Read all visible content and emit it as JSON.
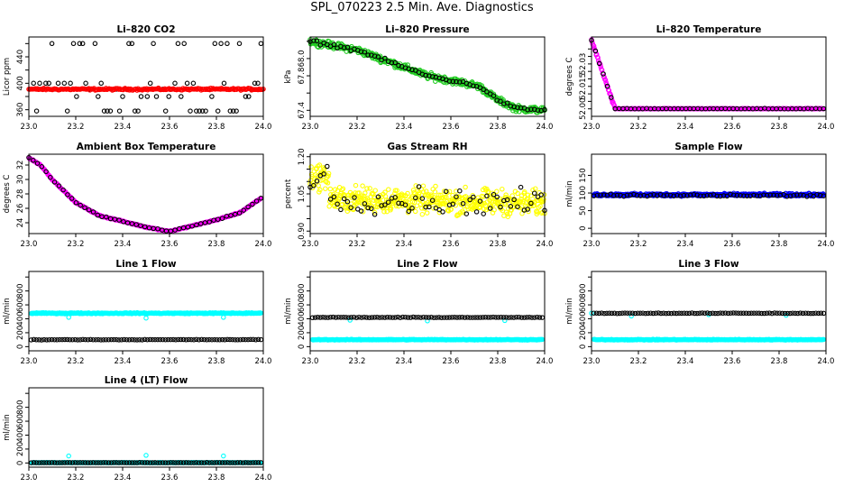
{
  "figure": {
    "title": "SPL_070223  2.5 Min. Ave. Diagnostics"
  },
  "colors": {
    "outline": "#000000",
    "red": "#ff0000",
    "green": "#22cc22",
    "magenta": "#ff00ff",
    "yellow": "#ffff00",
    "blue": "#0000ff",
    "cyan": "#00ffff",
    "black": "#000000"
  },
  "chart_data": [
    {
      "id": "co2",
      "type": "scatter",
      "title": "Li–820 CO2",
      "ylabel": "Licor ppm",
      "xlim": [
        23.0,
        24.0
      ],
      "ylim": [
        350,
        470
      ],
      "xticks": [
        "23.0",
        "23.2",
        "23.4",
        "23.6",
        "23.8",
        "24.0"
      ],
      "yticks": [
        {
          "v": 360,
          "label": "360"
        },
        {
          "v": 400,
          "label": "400"
        },
        {
          "v": 440,
          "label": "440"
        }
      ],
      "ytick_marks": [
        360,
        380,
        400,
        420,
        440,
        460
      ],
      "series": [
        {
          "name": "Li-820 CO2 (black)",
          "color": "black",
          "gen": "co2_spiky"
        },
        {
          "name": "Li-820 CO2 (red)",
          "color": "red",
          "gen": "co2_red"
        }
      ]
    },
    {
      "id": "pressure",
      "type": "scatter",
      "title": "Li–820 Pressure",
      "ylabel": "kPa",
      "xlim": [
        23.0,
        24.0
      ],
      "ylim": [
        67.33,
        68.25
      ],
      "xticks": [
        "23.0",
        "23.2",
        "23.4",
        "23.6",
        "23.8",
        "24.0"
      ],
      "yticks": [
        {
          "v": 67.4,
          "label": "67.4"
        },
        {
          "v": 67.8,
          "label": "67.8"
        },
        {
          "v": 68.0,
          "label": "68.0"
        }
      ],
      "ytick_marks": [
        67.4,
        67.6,
        67.8,
        68.0,
        68.2
      ],
      "series": [
        {
          "name": "Li-820 Pressure (green)",
          "color": "green",
          "gen": "pressure",
          "n": 460,
          "jitter": 0.04
        },
        {
          "name": "Li-820 Pressure (black)",
          "color": "black",
          "gen": "pressure",
          "n": 70,
          "jitter": 0.02
        }
      ]
    },
    {
      "id": "licor_temp",
      "type": "scatter",
      "title": "Li–820 Temperature",
      "ylabel": "degrees C",
      "xlim": [
        23.0,
        24.0
      ],
      "ylim": [
        51.995,
        52.048
      ],
      "xticks": [
        "23.0",
        "23.2",
        "23.4",
        "23.6",
        "23.8",
        "24.0"
      ],
      "yticks": [
        {
          "v": 52.0,
          "label": "52.00"
        },
        {
          "v": 52.015,
          "label": "52.015"
        },
        {
          "v": 52.03,
          "label": "52.03"
        }
      ],
      "ytick_marks": [
        52.0,
        52.005,
        52.01,
        52.015,
        52.02,
        52.025,
        52.03,
        52.035,
        52.04
      ],
      "series": [
        {
          "name": "Li-820 Temperature (magenta)",
          "color": "magenta",
          "gen": "licor_temp",
          "n": 400
        },
        {
          "name": "Li-820 Temperature (black)",
          "color": "black",
          "gen": "licor_temp",
          "n": 60
        }
      ]
    },
    {
      "id": "box_temp",
      "type": "scatter",
      "title": "Ambient Box Temperature",
      "ylabel": "degrees C",
      "xlim": [
        23.0,
        24.0
      ],
      "ylim": [
        22.5,
        33.5
      ],
      "xticks": [
        "23.0",
        "23.2",
        "23.4",
        "23.6",
        "23.8",
        "24.0"
      ],
      "yticks": [
        {
          "v": 24,
          "label": "24"
        },
        {
          "v": 26,
          "label": "26"
        },
        {
          "v": 28,
          "label": "28"
        },
        {
          "v": 30,
          "label": "30"
        },
        {
          "v": 32,
          "label": "32"
        }
      ],
      "ytick_marks": [
        24,
        26,
        28,
        30,
        32
      ],
      "series": [
        {
          "name": "Ambient Box Temperature (magenta)",
          "color": "magenta",
          "gen": "box_temp",
          "n": 400
        },
        {
          "name": "Ambient Box Temperature (black)",
          "color": "black",
          "gen": "box_temp",
          "n": 55
        }
      ]
    },
    {
      "id": "rh",
      "type": "scatter",
      "title": "Gas Stream RH",
      "ylabel": "percent",
      "xlim": [
        23.0,
        24.0
      ],
      "ylim": [
        0.89,
        1.21
      ],
      "xticks": [
        "23.0",
        "23.2",
        "23.4",
        "23.6",
        "23.8",
        "24.0"
      ],
      "yticks": [
        {
          "v": 0.9,
          "label": "0.90"
        },
        {
          "v": 1.05,
          "label": "1.05"
        },
        {
          "v": 1.2,
          "label": "1.20"
        }
      ],
      "ytick_marks": [
        0.9,
        0.95,
        1.0,
        1.05,
        1.1,
        1.15,
        1.2
      ],
      "series": [
        {
          "name": "Gas Stream RH (yellow)",
          "color": "yellow",
          "gen": "rh",
          "n": 480
        },
        {
          "name": "Gas Stream RH (black)",
          "color": "black",
          "gen": "rh",
          "n": 70
        }
      ]
    },
    {
      "id": "sample_flow",
      "type": "scatter",
      "title": "Sample Flow",
      "ylabel": "ml/min",
      "xlim": [
        23.0,
        24.0
      ],
      "ylim": [
        -15,
        210
      ],
      "xticks": [
        "23.0",
        "23.2",
        "23.4",
        "23.6",
        "23.8",
        "24.0"
      ],
      "yticks": [
        {
          "v": 0,
          "label": "0"
        },
        {
          "v": 50,
          "label": "50"
        },
        {
          "v": 100,
          "label": "100"
        },
        {
          "v": 150,
          "label": "150"
        }
      ],
      "ytick_marks": [
        0,
        50,
        100,
        150
      ],
      "series": [
        {
          "name": "Sample Flow (blue)",
          "color": "blue",
          "gen": "flat",
          "level": 95,
          "jitter": 4,
          "n": 420
        },
        {
          "name": "Sample Flow (black)",
          "color": "black",
          "gen": "flat",
          "level": 93,
          "jitter": 4,
          "n": 70
        }
      ]
    },
    {
      "id": "line1",
      "type": "scatter",
      "title": "Line 1 Flow",
      "ylabel": "ml/min",
      "xlim": [
        23.0,
        24.0
      ],
      "ylim": [
        -60,
        1080
      ],
      "xticks": [
        "23.0",
        "23.2",
        "23.4",
        "23.6",
        "23.8",
        "24.0"
      ],
      "yticks": [
        {
          "v": 0,
          "label": "0"
        },
        {
          "v": 200,
          "label": "200"
        },
        {
          "v": 400,
          "label": "400"
        },
        {
          "v": 600,
          "label": "600"
        },
        {
          "v": 800,
          "label": "800"
        }
      ],
      "ytick_marks": [
        0,
        200,
        400,
        600,
        800,
        1000
      ],
      "series": [
        {
          "name": "Line 1 Flow (cyan)",
          "color": "cyan",
          "gen": "flat",
          "level": 480,
          "jitter": 8,
          "n": 300,
          "outliers": [
            [
              23.17,
              420
            ],
            [
              23.5,
              410
            ],
            [
              23.83,
              420
            ]
          ]
        },
        {
          "name": "Line 1 Flow (black)",
          "color": "black",
          "gen": "flat",
          "level": 100,
          "jitter": 4,
          "n": 90
        }
      ]
    },
    {
      "id": "line2",
      "type": "scatter",
      "title": "Line 2 Flow",
      "ylabel": "ml/min",
      "xlim": [
        23.0,
        24.0
      ],
      "ylim": [
        -60,
        1080
      ],
      "xticks": [
        "23.0",
        "23.2",
        "23.4",
        "23.6",
        "23.8",
        "24.0"
      ],
      "yticks": [
        {
          "v": 0,
          "label": "0"
        },
        {
          "v": 200,
          "label": "200"
        },
        {
          "v": 400,
          "label": "400"
        },
        {
          "v": 600,
          "label": "600"
        },
        {
          "v": 800,
          "label": "800"
        }
      ],
      "ytick_marks": [
        0,
        200,
        400,
        600,
        800,
        1000
      ],
      "series": [
        {
          "name": "Line 2 Flow (cyan)",
          "color": "cyan",
          "gen": "flat",
          "level": 100,
          "jitter": 6,
          "n": 300,
          "outliers": [
            [
              23.17,
              380
            ],
            [
              23.5,
              370
            ],
            [
              23.83,
              375
            ]
          ]
        },
        {
          "name": "Line 2 Flow (black)",
          "color": "black",
          "gen": "flat",
          "level": 420,
          "jitter": 5,
          "n": 90
        }
      ]
    },
    {
      "id": "line3",
      "type": "scatter",
      "title": "Line 3 Flow",
      "ylabel": "ml/min",
      "xlim": [
        23.0,
        24.0
      ],
      "ylim": [
        -60,
        1080
      ],
      "xticks": [
        "23.0",
        "23.2",
        "23.4",
        "23.6",
        "23.8",
        "24.0"
      ],
      "yticks": [
        {
          "v": 0,
          "label": "0"
        },
        {
          "v": 200,
          "label": "200"
        },
        {
          "v": 400,
          "label": "400"
        },
        {
          "v": 600,
          "label": "600"
        },
        {
          "v": 800,
          "label": "800"
        }
      ],
      "ytick_marks": [
        0,
        200,
        400,
        600,
        800,
        1000
      ],
      "series": [
        {
          "name": "Line 3 Flow (cyan)",
          "color": "cyan",
          "gen": "flat",
          "level": 100,
          "jitter": 6,
          "n": 300,
          "outliers": [
            [
              23.0,
              480
            ],
            [
              23.17,
              440
            ],
            [
              23.5,
              460
            ],
            [
              23.83,
              450
            ]
          ]
        },
        {
          "name": "Line 3 Flow (black)",
          "color": "black",
          "gen": "flat",
          "level": 480,
          "jitter": 5,
          "n": 90
        }
      ]
    },
    {
      "id": "line4",
      "type": "scatter",
      "title": "Line 4 (LT) Flow",
      "ylabel": "ml/min",
      "xlim": [
        23.0,
        24.0
      ],
      "ylim": [
        -60,
        1080
      ],
      "xticks": [
        "23.0",
        "23.2",
        "23.4",
        "23.6",
        "23.8",
        "24.0"
      ],
      "yticks": [
        {
          "v": 0,
          "label": "0"
        },
        {
          "v": 200,
          "label": "200"
        },
        {
          "v": 400,
          "label": "400"
        },
        {
          "v": 600,
          "label": "600"
        },
        {
          "v": 800,
          "label": "800"
        }
      ],
      "ytick_marks": [
        0,
        200,
        400,
        600,
        800,
        1000
      ],
      "series": [
        {
          "name": "Line 4 (LT) Flow (cyan)",
          "color": "cyan",
          "gen": "flat",
          "level": 5,
          "jitter": 3,
          "n": 250,
          "outliers": [
            [
              23.17,
              100
            ],
            [
              23.5,
              110
            ],
            [
              23.83,
              100
            ]
          ]
        },
        {
          "name": "Line 4 (LT) Flow (black)",
          "color": "black",
          "gen": "flat",
          "level": 5,
          "jitter": 2,
          "n": 90
        }
      ]
    }
  ]
}
